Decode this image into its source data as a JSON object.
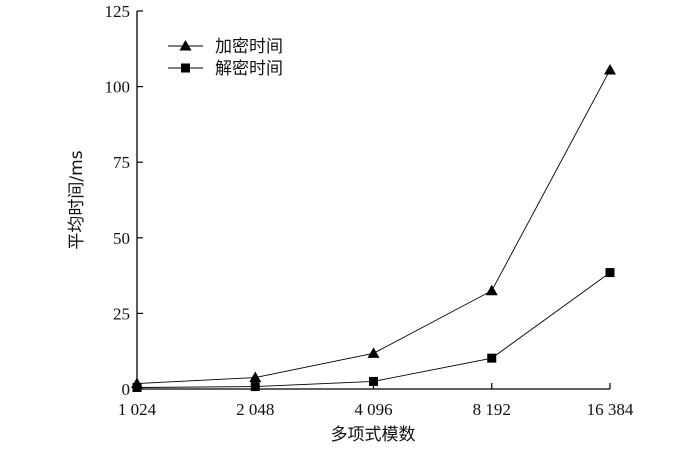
{
  "chart_data": {
    "type": "line",
    "categories": [
      "1 024",
      "2 048",
      "4 096",
      "8 192",
      "16 384"
    ],
    "series": [
      {
        "name": "加密时间",
        "marker": "triangle",
        "values": [
          1.8,
          3.8,
          11.8,
          32.5,
          105.5
        ]
      },
      {
        "name": "解密时间",
        "marker": "square",
        "values": [
          0.5,
          0.8,
          2.5,
          10.2,
          38.5
        ]
      }
    ],
    "xlabel": "多项式模数",
    "ylabel": "平均时间/ms",
    "ylim": [
      0,
      125
    ],
    "yticks": [
      0,
      25,
      50,
      75,
      100,
      125
    ],
    "grid": false,
    "legend_position": "top-left",
    "colors": {
      "line": "#000000",
      "marker": "#000000"
    }
  }
}
